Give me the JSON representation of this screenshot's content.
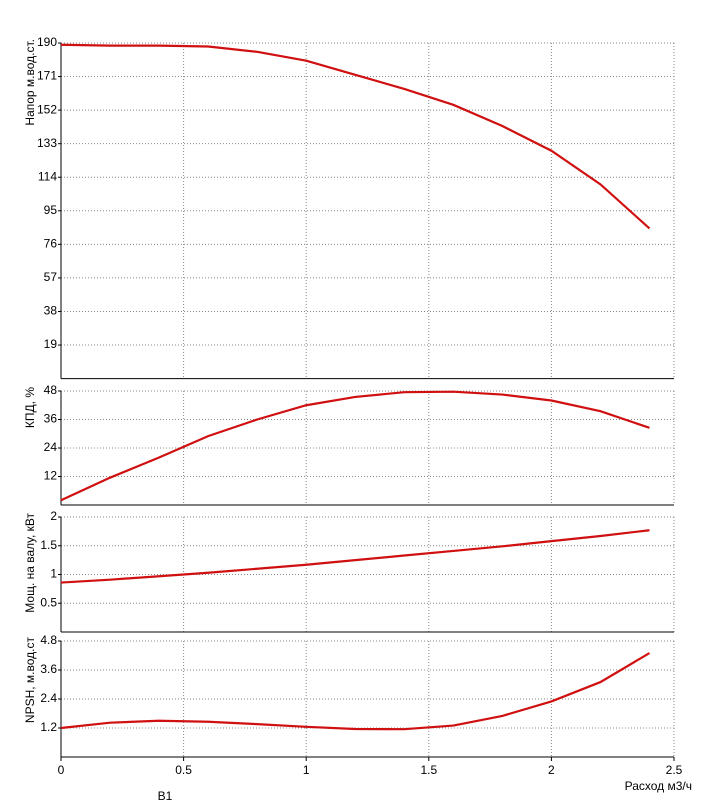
{
  "chart_data": [
    {
      "type": "line",
      "ylabel": "Напор м.вод.ст.",
      "color": "#d01010",
      "x": [
        0,
        0.2,
        0.4,
        0.6,
        0.8,
        1.0,
        1.2,
        1.4,
        1.6,
        1.8,
        2.0,
        2.2,
        2.4
      ],
      "values": [
        189,
        188.5,
        188.5,
        188,
        185,
        180,
        172,
        164,
        155,
        143,
        129,
        110,
        85
      ],
      "ylim": [
        0,
        190
      ],
      "yticks": [
        19,
        38,
        57,
        76,
        95,
        114,
        133,
        152,
        171,
        190
      ],
      "grid": true
    },
    {
      "type": "line",
      "ylabel": "КПД, %",
      "color": "#d01010",
      "x": [
        0,
        0.2,
        0.4,
        0.6,
        0.8,
        1.0,
        1.2,
        1.4,
        1.6,
        1.8,
        2.0,
        2.2,
        2.4
      ],
      "values": [
        2,
        11.5,
        20,
        29,
        36,
        42,
        45.5,
        47.5,
        47.7,
        46.5,
        44,
        39.5,
        32.5
      ],
      "ylim": [
        0,
        48
      ],
      "yticks": [
        12,
        24,
        36,
        48
      ],
      "grid": true
    },
    {
      "type": "line",
      "ylabel": "Мощ. на валу, кВт",
      "color": "#d01010",
      "x": [
        0,
        0.2,
        0.4,
        0.6,
        0.8,
        1.0,
        1.2,
        1.4,
        1.6,
        1.8,
        2.0,
        2.2,
        2.4
      ],
      "values": [
        0.86,
        0.91,
        0.97,
        1.03,
        1.1,
        1.17,
        1.25,
        1.33,
        1.41,
        1.49,
        1.58,
        1.67,
        1.77
      ],
      "ylim": [
        0,
        2
      ],
      "yticks": [
        0.5,
        1,
        1.5,
        2
      ],
      "grid": true
    },
    {
      "type": "line",
      "ylabel": "NPSH, м.вод.ст",
      "color": "#d01010",
      "xlabel": "Расход м3/ч",
      "x": [
        0,
        0.2,
        0.4,
        0.6,
        0.8,
        1.0,
        1.2,
        1.4,
        1.6,
        1.8,
        2.0,
        2.2,
        2.4
      ],
      "values": [
        1.2,
        1.42,
        1.5,
        1.46,
        1.36,
        1.25,
        1.16,
        1.15,
        1.3,
        1.7,
        2.3,
        3.1,
        4.3
      ],
      "ylim": [
        0,
        4.8
      ],
      "yticks": [
        1.2,
        2.4,
        3.6,
        4.8
      ],
      "grid": true,
      "xlim": [
        0,
        2.5
      ],
      "xticks": [
        0,
        0.5,
        1,
        1.5,
        2,
        2.5
      ]
    }
  ],
  "footer_label": "В1"
}
